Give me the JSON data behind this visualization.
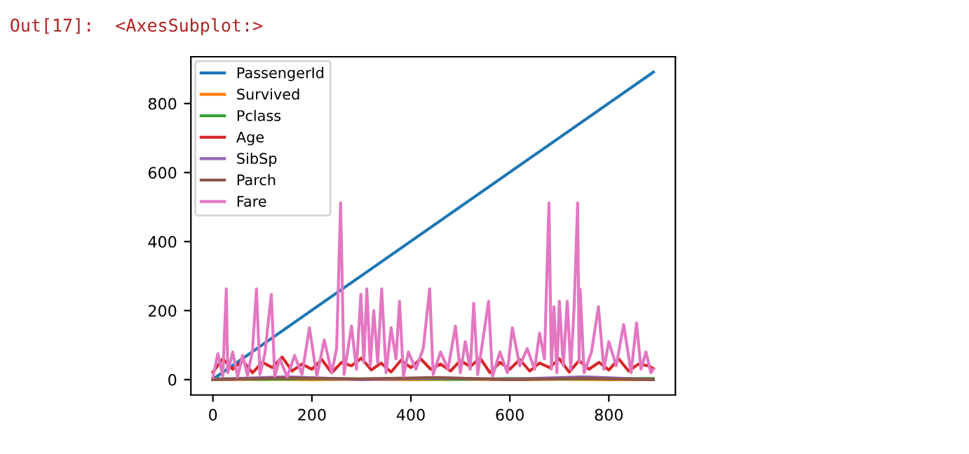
{
  "chart_data": {
    "type": "line",
    "annotations": [
      "Out[17]:  <AxesSubplot:>"
    ],
    "xlim": [
      -44.5,
      934.5
    ],
    "ylim": [
      -44.55,
      935.55
    ],
    "xticks": [
      0,
      200,
      400,
      600,
      800
    ],
    "yticks": [
      0,
      200,
      400,
      600,
      800
    ],
    "grid": false,
    "legend": "top left",
    "line_style": "solid",
    "marker": "none",
    "series": [
      {
        "name": "PassengerId",
        "color": "#1f77b4",
        "x": [
          0,
          890
        ],
        "values": [
          1,
          891
        ]
      },
      {
        "name": "Survived",
        "color": "#ff7f0e",
        "x": [
          0,
          100,
          200,
          300,
          400,
          500,
          600,
          700,
          800,
          890
        ],
        "values": [
          0,
          1,
          0,
          1,
          0,
          1,
          0,
          1,
          0,
          0
        ]
      },
      {
        "name": "Pclass",
        "color": "#2ca02c",
        "x": [
          0,
          100,
          200,
          300,
          400,
          500,
          600,
          700,
          800,
          890
        ],
        "values": [
          3,
          1,
          3,
          2,
          3,
          1,
          3,
          2,
          3,
          3
        ]
      },
      {
        "name": "Age",
        "color": "#d62728",
        "x": [
          0,
          20,
          40,
          60,
          80,
          100,
          120,
          140,
          160,
          180,
          200,
          220,
          240,
          260,
          280,
          300,
          320,
          340,
          360,
          380,
          400,
          420,
          440,
          460,
          480,
          500,
          520,
          540,
          560,
          580,
          600,
          620,
          640,
          660,
          680,
          700,
          720,
          740,
          760,
          780,
          800,
          820,
          840,
          860,
          880,
          890
        ],
        "values": [
          22,
          60,
          30,
          55,
          20,
          50,
          35,
          65,
          25,
          45,
          30,
          58,
          20,
          50,
          40,
          62,
          28,
          48,
          22,
          56,
          35,
          60,
          30,
          45,
          25,
          55,
          38,
          62,
          20,
          50,
          30,
          58,
          25,
          48,
          35,
          60,
          22,
          55,
          30,
          50,
          28,
          60,
          25,
          45,
          40,
          32
        ]
      },
      {
        "name": "SibSp",
        "color": "#9467bd",
        "x": [
          0,
          150,
          300,
          450,
          600,
          750,
          890
        ],
        "values": [
          1,
          8,
          0,
          5,
          1,
          8,
          0
        ]
      },
      {
        "name": "Parch",
        "color": "#8c564b",
        "x": [
          0,
          150,
          300,
          450,
          600,
          750,
          890
        ],
        "values": [
          0,
          5,
          2,
          6,
          0,
          4,
          0
        ]
      },
      {
        "name": "Fare",
        "color": "#e377c2",
        "x": [
          0,
          10,
          20,
          27,
          30,
          40,
          50,
          60,
          70,
          80,
          88,
          95,
          105,
          118,
          125,
          135,
          150,
          165,
          180,
          195,
          210,
          225,
          240,
          250,
          258,
          265,
          280,
          290,
          299,
          305,
          311,
          318,
          325,
          333,
          341,
          350,
          360,
          370,
          377,
          385,
          395,
          410,
          425,
          438,
          445,
          460,
          475,
          490,
          500,
          510,
          520,
          527,
          535,
          545,
          557,
          565,
          580,
          595,
          605,
          620,
          635,
          650,
          660,
          670,
          679,
          684,
          689,
          695,
          700,
          708,
          716,
          723,
          730,
          737,
          740,
          742,
          750,
          765,
          779,
          790,
          800,
          815,
          830,
          845,
          856,
          865,
          875,
          885,
          890
        ],
        "values": [
          7,
          75,
          10,
          263,
          20,
          80,
          8,
          70,
          12,
          85,
          263,
          15,
          75,
          247,
          10,
          60,
          8,
          70,
          15,
          150,
          10,
          115,
          20,
          90,
          512,
          15,
          155,
          30,
          247,
          50,
          263,
          40,
          200,
          50,
          263,
          20,
          150,
          60,
          227,
          10,
          80,
          30,
          90,
          263,
          15,
          80,
          30,
          155,
          20,
          110,
          30,
          221,
          15,
          110,
          227,
          10,
          80,
          20,
          150,
          40,
          90,
          30,
          135,
          60,
          512,
          30,
          211,
          20,
          227,
          40,
          227,
          30,
          211,
          512,
          50,
          262,
          20,
          80,
          211,
          30,
          110,
          40,
          160,
          20,
          164,
          30,
          80,
          20,
          30
        ]
      }
    ]
  }
}
